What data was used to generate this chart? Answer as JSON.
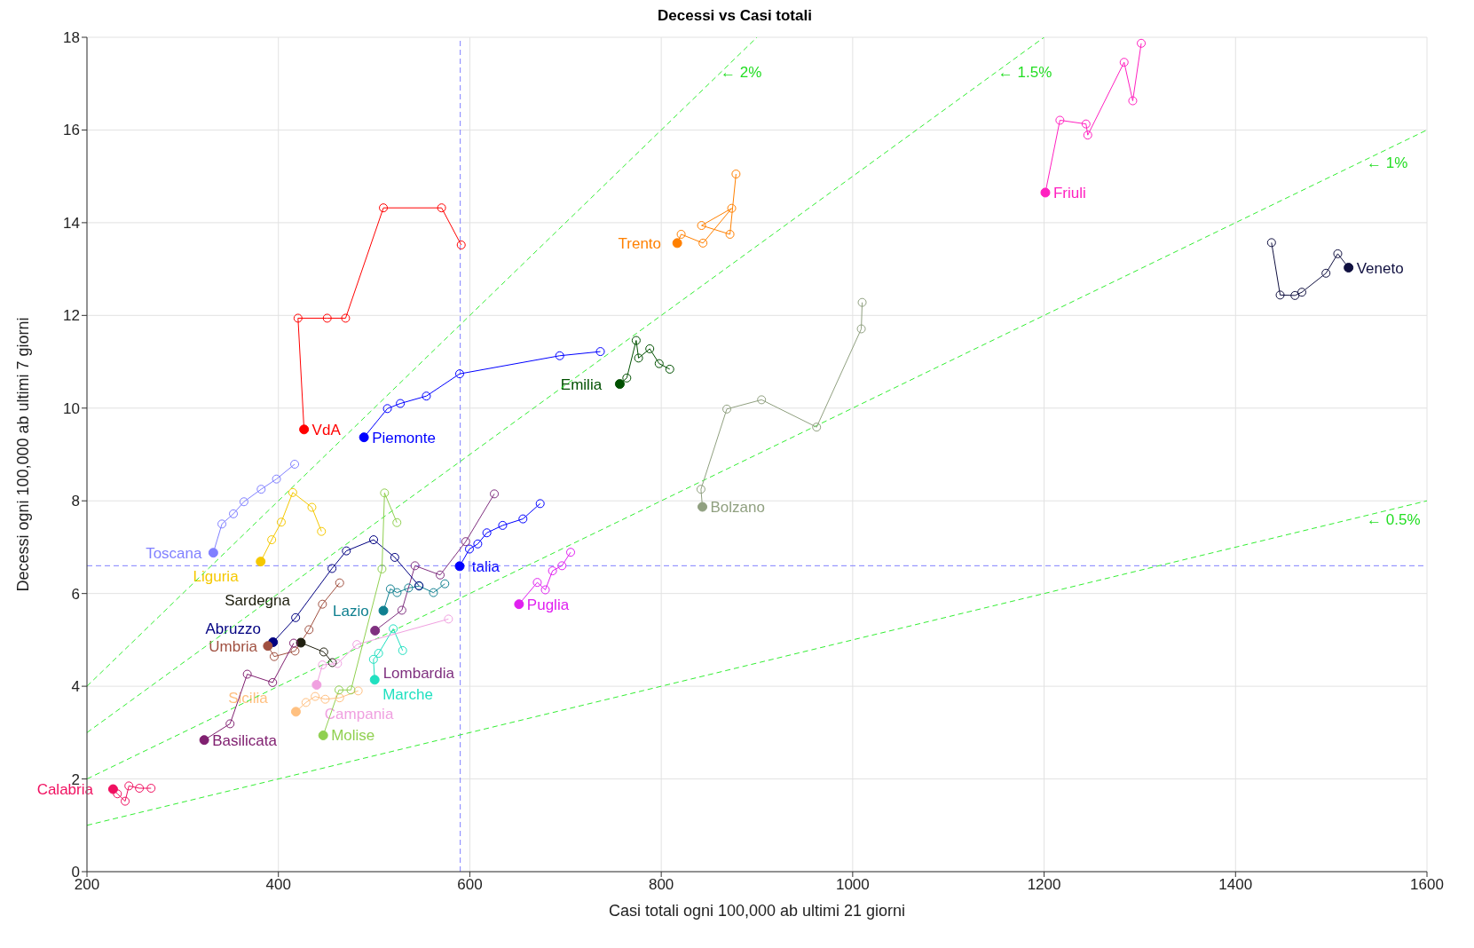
{
  "chart_data": {
    "type": "line",
    "title": "Decessi vs Casi totali",
    "xlabel": "Casi totali ogni 100,000 ab ultimi 21 giorni",
    "ylabel": "Decessi ogni 100,000 ab ultimi 7 giorni",
    "xlim": [
      200,
      1600
    ],
    "xticks": [
      200,
      400,
      600,
      800,
      1000,
      1200,
      1400,
      1600
    ],
    "ylim": [
      0,
      18
    ],
    "yticks": [
      0,
      2,
      4,
      6,
      8,
      10,
      12,
      14,
      16,
      18
    ],
    "grid": true,
    "marker": "circle",
    "line_style": "solid",
    "ref_lines": [
      {
        "axis": "x",
        "value": 590,
        "color": "#8080ff",
        "line_style": "dashed"
      },
      {
        "axis": "y",
        "value": 6.6,
        "color": "#8080ff",
        "line_style": "dashed"
      }
    ],
    "annotations": [
      {
        "text": "← 2%",
        "x": 862,
        "y": 17.25
      },
      {
        "text": "← 1.5%",
        "x": 1152,
        "y": 17.25
      },
      {
        "text": "← 1%",
        "x": 1537,
        "y": 15.3
      },
      {
        "text": "← 0.5%",
        "x": 1537,
        "y": 7.6
      }
    ],
    "series": [
      {
        "type": "line",
        "line_style": "dashed",
        "marker": "none",
        "color": "#33ee33",
        "x": [
          200,
          900
        ],
        "values": [
          4,
          18
        ]
      },
      {
        "type": "line",
        "line_style": "dashed",
        "marker": "none",
        "color": "#33ee33",
        "x": [
          200,
          1200
        ],
        "values": [
          3,
          18
        ]
      },
      {
        "type": "line",
        "line_style": "dashed",
        "marker": "none",
        "color": "#33ee33",
        "x": [
          200,
          1600
        ],
        "values": [
          2,
          16
        ]
      },
      {
        "type": "line",
        "line_style": "dashed",
        "marker": "none",
        "color": "#33ee33",
        "x": [
          200,
          1600
        ],
        "values": [
          1,
          8
        ]
      },
      {
        "name": "VdA",
        "color": "#ff0000",
        "x": [
          591,
          570.5,
          509.7,
          470.2,
          451,
          420.5,
          426.8
        ],
        "values": [
          13.52,
          14.32,
          14.32,
          11.94,
          11.94,
          11.94,
          9.54
        ]
      },
      {
        "name": "Piemonte",
        "color": "#0000ff",
        "x": [
          736.4,
          693.9,
          589.4,
          554.6,
          527.4,
          513.9,
          489.4
        ],
        "values": [
          11.22,
          11.13,
          10.74,
          10.26,
          10.1,
          9.99,
          9.37
        ]
      },
      {
        "name": "Toscana",
        "color": "#8080ff",
        "x": [
          417,
          398,
          382,
          364,
          353,
          341,
          332
        ],
        "values": [
          8.79,
          8.47,
          8.25,
          7.98,
          7.72,
          7.5,
          6.88
        ]
      },
      {
        "name": "Liguria",
        "color": "#f5c800",
        "x": [
          445,
          435,
          415,
          403,
          393,
          381.5
        ],
        "values": [
          7.34,
          7.86,
          8.18,
          7.54,
          7.16,
          6.69
        ]
      },
      {
        "name": "Italia",
        "color": "#0000ff",
        "x": [
          673.5,
          655.5,
          634.3,
          617.8,
          608.3,
          599.6,
          589.4
        ],
        "values": [
          7.94,
          7.61,
          7.47,
          7.31,
          7.07,
          6.96,
          6.59
        ]
      },
      {
        "name": "Lazio",
        "color": "#108090",
        "x": [
          573.9,
          562,
          547,
          536,
          524,
          517,
          509.7
        ],
        "values": [
          6.21,
          6.02,
          6.16,
          6.12,
          6.02,
          6.1,
          5.63
        ]
      },
      {
        "name": "Lombardia",
        "color": "#7f307f",
        "x": [
          625.6,
          595.7,
          569,
          542.7,
          529,
          501
        ],
        "values": [
          8.15,
          7.12,
          6.4,
          6.6,
          5.64,
          5.2
        ]
      },
      {
        "name": "Abruzzo",
        "color": "#000080",
        "x": [
          546.8,
          521.6,
          499.5,
          471,
          456,
          418,
          394.4
        ],
        "values": [
          6.17,
          6.78,
          7.16,
          6.92,
          6.54,
          5.48,
          4.95
        ]
      },
      {
        "name": "Umbria",
        "color": "#a05040",
        "x": [
          464,
          446,
          432,
          417.4,
          395.6,
          389
        ],
        "values": [
          6.23,
          5.77,
          5.22,
          4.76,
          4.64,
          4.87
        ]
      },
      {
        "name": "Sardegna",
        "color": "#202010",
        "x": [
          456.4,
          447.4,
          423.5
        ],
        "values": [
          4.51,
          4.74,
          4.94
        ]
      },
      {
        "name": "Marche",
        "color": "#20e0c0",
        "x": [
          529.8,
          520,
          504.7,
          499.3,
          500.6
        ],
        "values": [
          4.77,
          5.24,
          4.71,
          4.58,
          4.14
        ]
      },
      {
        "name": "Campania",
        "color": "#f0a0e0",
        "x": [
          577.7,
          482,
          461.8,
          446,
          440
        ],
        "values": [
          5.45,
          4.9,
          4.49,
          4.46,
          4.03
        ]
      },
      {
        "name": "Sicilia",
        "color": "#ffc080",
        "x": [
          483.4,
          464,
          448.9,
          438.4,
          428.8,
          418.3
        ],
        "values": [
          3.9,
          3.75,
          3.72,
          3.78,
          3.65,
          3.45
        ]
      },
      {
        "name": "Molise",
        "color": "#90d050",
        "x": [
          523.8,
          510.9,
          508.2,
          475.8,
          463.3,
          446.8
        ],
        "values": [
          7.53,
          8.17,
          6.53,
          3.92,
          3.92,
          2.94
        ]
      },
      {
        "name": "Basilicata",
        "color": "#802070",
        "x": [
          416,
          394,
          367.5,
          349.5,
          322.5
        ],
        "values": [
          4.93,
          4.08,
          4.26,
          3.19,
          2.84
        ]
      },
      {
        "name": "Calabria",
        "color": "#f01060",
        "x": [
          267,
          254.8,
          243.8,
          239.9,
          231.8,
          227.3
        ],
        "values": [
          1.8,
          1.8,
          1.85,
          1.52,
          1.68,
          1.78
        ]
      },
      {
        "name": "Puglia",
        "color": "#e020f0",
        "x": [
          705.3,
          696.3,
          686.4,
          678.9,
          670.5,
          651.4
        ],
        "values": [
          6.89,
          6.6,
          6.49,
          6.08,
          6.24,
          5.77
        ]
      },
      {
        "name": "Emilia",
        "color": "#005000",
        "x": [
          808.9,
          797.8,
          788,
          776.3,
          773.8,
          764,
          756.7
        ],
        "values": [
          10.84,
          10.96,
          11.28,
          11.08,
          11.46,
          10.65,
          10.52
        ]
      },
      {
        "name": "Trento",
        "color": "#ff8000",
        "x": [
          878.1,
          871.8,
          842.1,
          873.6,
          843.6,
          820.8,
          816.7
        ],
        "values": [
          15.05,
          13.75,
          13.94,
          14.31,
          13.56,
          13.75,
          13.56
        ]
      },
      {
        "name": "Bolzano",
        "color": "#90a080",
        "x": [
          1009.9,
          1009,
          962.3,
          904.8,
          868.5,
          841.5,
          843
        ],
        "values": [
          12.28,
          11.71,
          9.59,
          10.18,
          9.98,
          8.25,
          7.87
        ]
      },
      {
        "name": "Friuli",
        "color": "#ff20c0",
        "x": [
          1301.5,
          1292.6,
          1283.6,
          1245.6,
          1243.8,
          1216.5,
          1201.3
        ],
        "values": [
          17.87,
          16.63,
          17.46,
          15.89,
          16.13,
          16.21,
          14.65
        ]
      },
      {
        "name": "Veneto",
        "color": "#101040",
        "x": [
          1437.6,
          1446.6,
          1462.1,
          1469.3,
          1494.5,
          1506.8,
          1518.1
        ],
        "values": [
          13.57,
          12.44,
          12.43,
          12.5,
          12.91,
          13.33,
          13.03
        ]
      }
    ]
  }
}
